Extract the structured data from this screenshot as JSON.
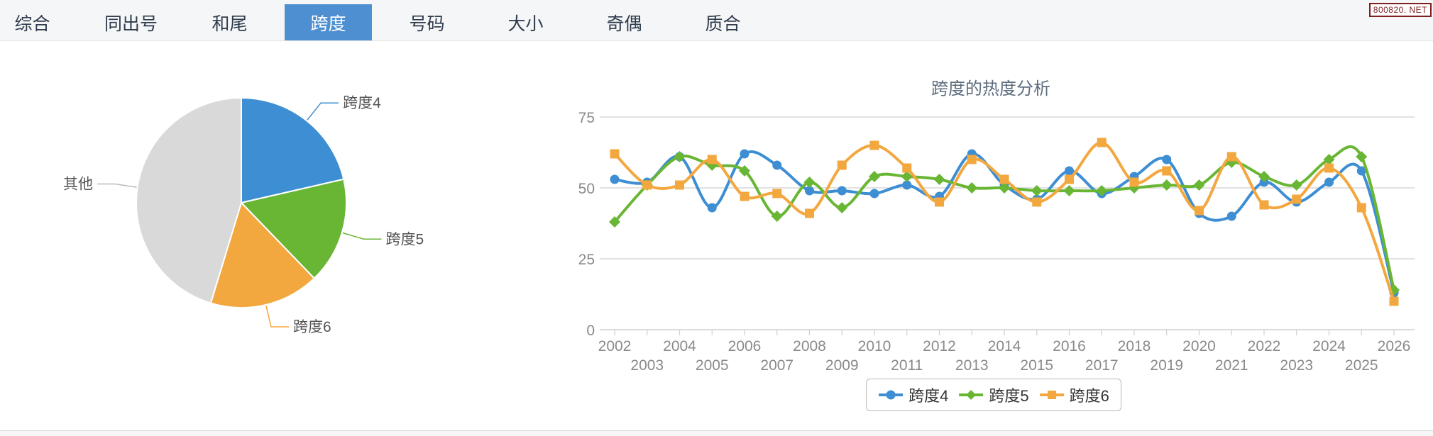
{
  "tabbar": {
    "items": [
      {
        "label": "综合",
        "active": false
      },
      {
        "label": "同出号",
        "active": false
      },
      {
        "label": "和尾",
        "active": false
      },
      {
        "label": "跨度",
        "active": true
      },
      {
        "label": "号码",
        "active": false
      },
      {
        "label": "大小",
        "active": false
      },
      {
        "label": "奇偶",
        "active": false
      },
      {
        "label": "质合",
        "active": false
      }
    ],
    "active_bg": "#4e8fd2",
    "active_text": "#ffffff",
    "inactive_text": "#2f3c4d"
  },
  "watermark": {
    "text": "800820. NET",
    "color": "#7f1f1f"
  },
  "colors": {
    "blue": "#3d8ed2",
    "green": "#69b634",
    "orange": "#f3a73f",
    "gray": "#d9d9d9",
    "grid": "#cfcfcf",
    "axis_text": "#8a8a8a",
    "pie_label_text": "#555555",
    "title_text": "#5d6d7e"
  },
  "chart_data": [
    {
      "type": "pie",
      "start_angle": "top",
      "direction": "clockwise",
      "slices": [
        {
          "label": "跨度4",
          "percent": 21.4,
          "color": "#3d8ed2"
        },
        {
          "label": "跨度5",
          "percent": 16.4,
          "color": "#69b634"
        },
        {
          "label": "跨度6",
          "percent": 16.9,
          "color": "#f3a73f"
        },
        {
          "label": "其他",
          "percent": 45.3,
          "color": "#d9d9d9"
        }
      ]
    },
    {
      "type": "line",
      "title": "跨度的热度分析",
      "x": [
        2002,
        2003,
        2004,
        2005,
        2006,
        2007,
        2008,
        2009,
        2010,
        2011,
        2012,
        2013,
        2014,
        2015,
        2016,
        2017,
        2018,
        2019,
        2020,
        2021,
        2022,
        2023,
        2024,
        2025,
        2026
      ],
      "ylim": [
        0,
        75
      ],
      "yticks": [
        0,
        25,
        50,
        75
      ],
      "grid": true,
      "smooth": true,
      "legend_position": "bottom",
      "series": [
        {
          "name": "跨度4",
          "color": "#3d8ed2",
          "marker": "circle",
          "values": [
            53,
            52,
            61,
            43,
            62,
            58,
            49,
            49,
            48,
            51,
            47,
            62,
            51,
            46,
            56,
            48,
            54,
            60,
            41,
            40,
            52,
            45,
            52,
            56,
            13
          ]
        },
        {
          "name": "跨度5",
          "color": "#69b634",
          "marker": "diamond",
          "values": [
            38,
            51,
            61,
            58,
            56,
            40,
            52,
            43,
            54,
            54,
            53,
            50,
            50,
            49,
            49,
            49,
            50,
            51,
            51,
            59,
            54,
            51,
            60,
            61,
            14
          ]
        },
        {
          "name": "跨度6",
          "color": "#f3a73f",
          "marker": "square",
          "values": [
            62,
            51,
            51,
            60,
            47,
            48,
            41,
            58,
            65,
            57,
            45,
            60,
            53,
            45,
            53,
            66,
            52,
            56,
            42,
            61,
            44,
            46,
            57,
            43,
            10
          ]
        }
      ]
    }
  ]
}
